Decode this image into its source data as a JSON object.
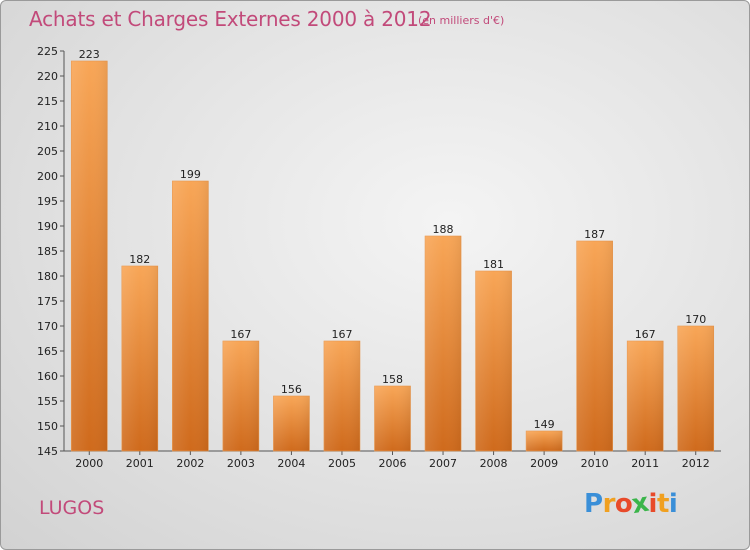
{
  "chart_data": {
    "type": "bar",
    "title": "Achats et Charges Externes 2000 à 2012",
    "subtitle": "(en milliers d'€)",
    "categories": [
      "2000",
      "2001",
      "2002",
      "2003",
      "2004",
      "2005",
      "2006",
      "2007",
      "2008",
      "2009",
      "2010",
      "2011",
      "2012"
    ],
    "values": [
      223,
      182,
      199,
      167,
      156,
      167,
      158,
      188,
      181,
      149,
      187,
      167,
      170
    ],
    "ylim": [
      145,
      225
    ],
    "yticks": [
      145,
      150,
      155,
      160,
      165,
      170,
      175,
      180,
      185,
      190,
      195,
      200,
      205,
      210,
      215,
      220,
      225
    ],
    "grid": false,
    "legend": "none"
  },
  "footer": {
    "commune": "LUGOS",
    "logo_letters": [
      "P",
      "r",
      "o",
      "x",
      "i",
      "t",
      "i"
    ],
    "logo_colors": [
      "#3a8fd8",
      "#f0a020",
      "#e84a2a",
      "#3ab54a",
      "#e84a2a",
      "#f0a020",
      "#3a8fd8"
    ]
  },
  "colors": {
    "bar_top": "#f8a657",
    "bar_bottom": "#cf6a1c",
    "text_accent": "#c24a7a"
  }
}
